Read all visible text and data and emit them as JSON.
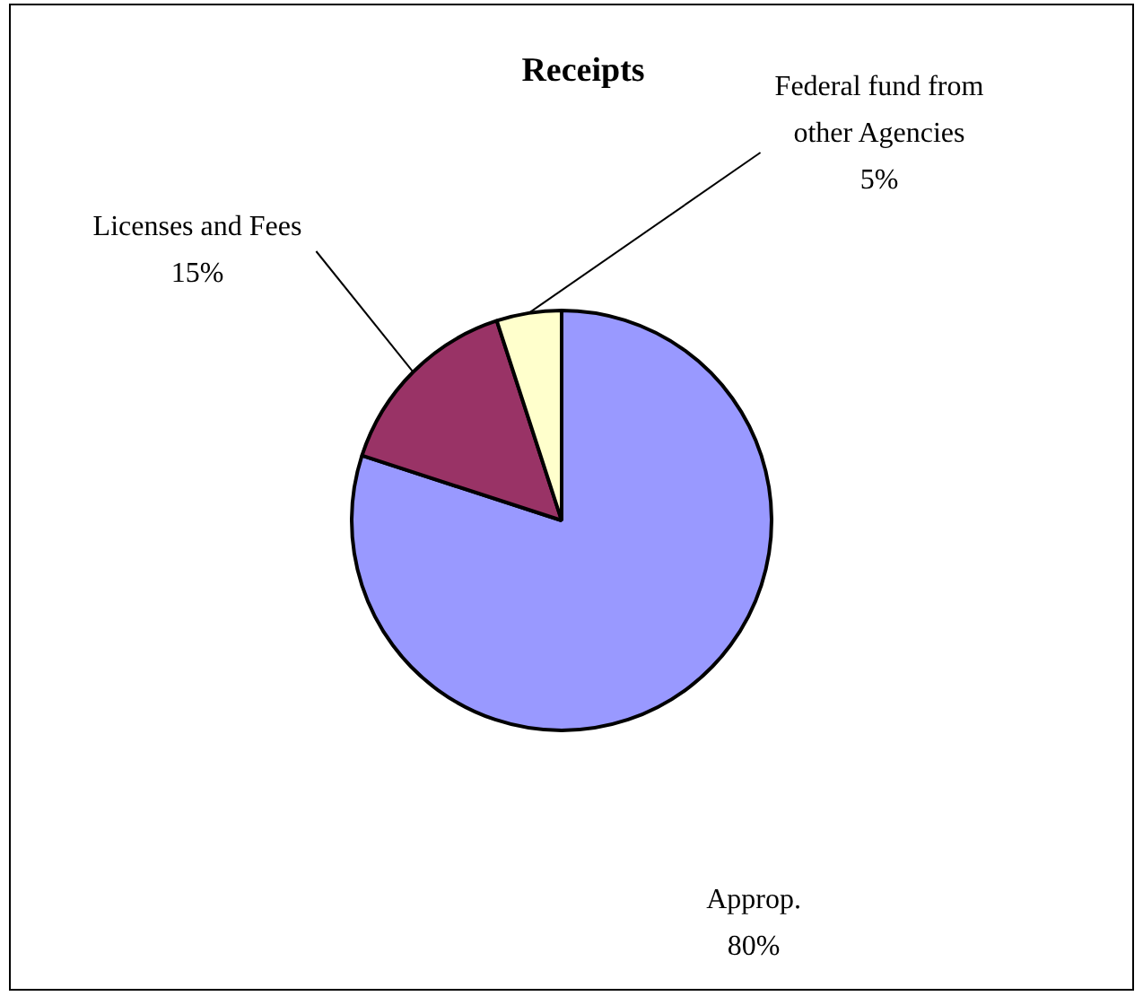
{
  "chart_data": {
    "type": "pie",
    "title": "Receipts",
    "categories": [
      "Approp.",
      "Licenses and Fees",
      "Federal fund from other Agencies"
    ],
    "values": [
      80,
      15,
      5
    ],
    "colors": [
      "#9999ff",
      "#993366",
      "#ffffcc"
    ],
    "value_labels": [
      "80%",
      "15%",
      "5%"
    ],
    "legend": false
  }
}
